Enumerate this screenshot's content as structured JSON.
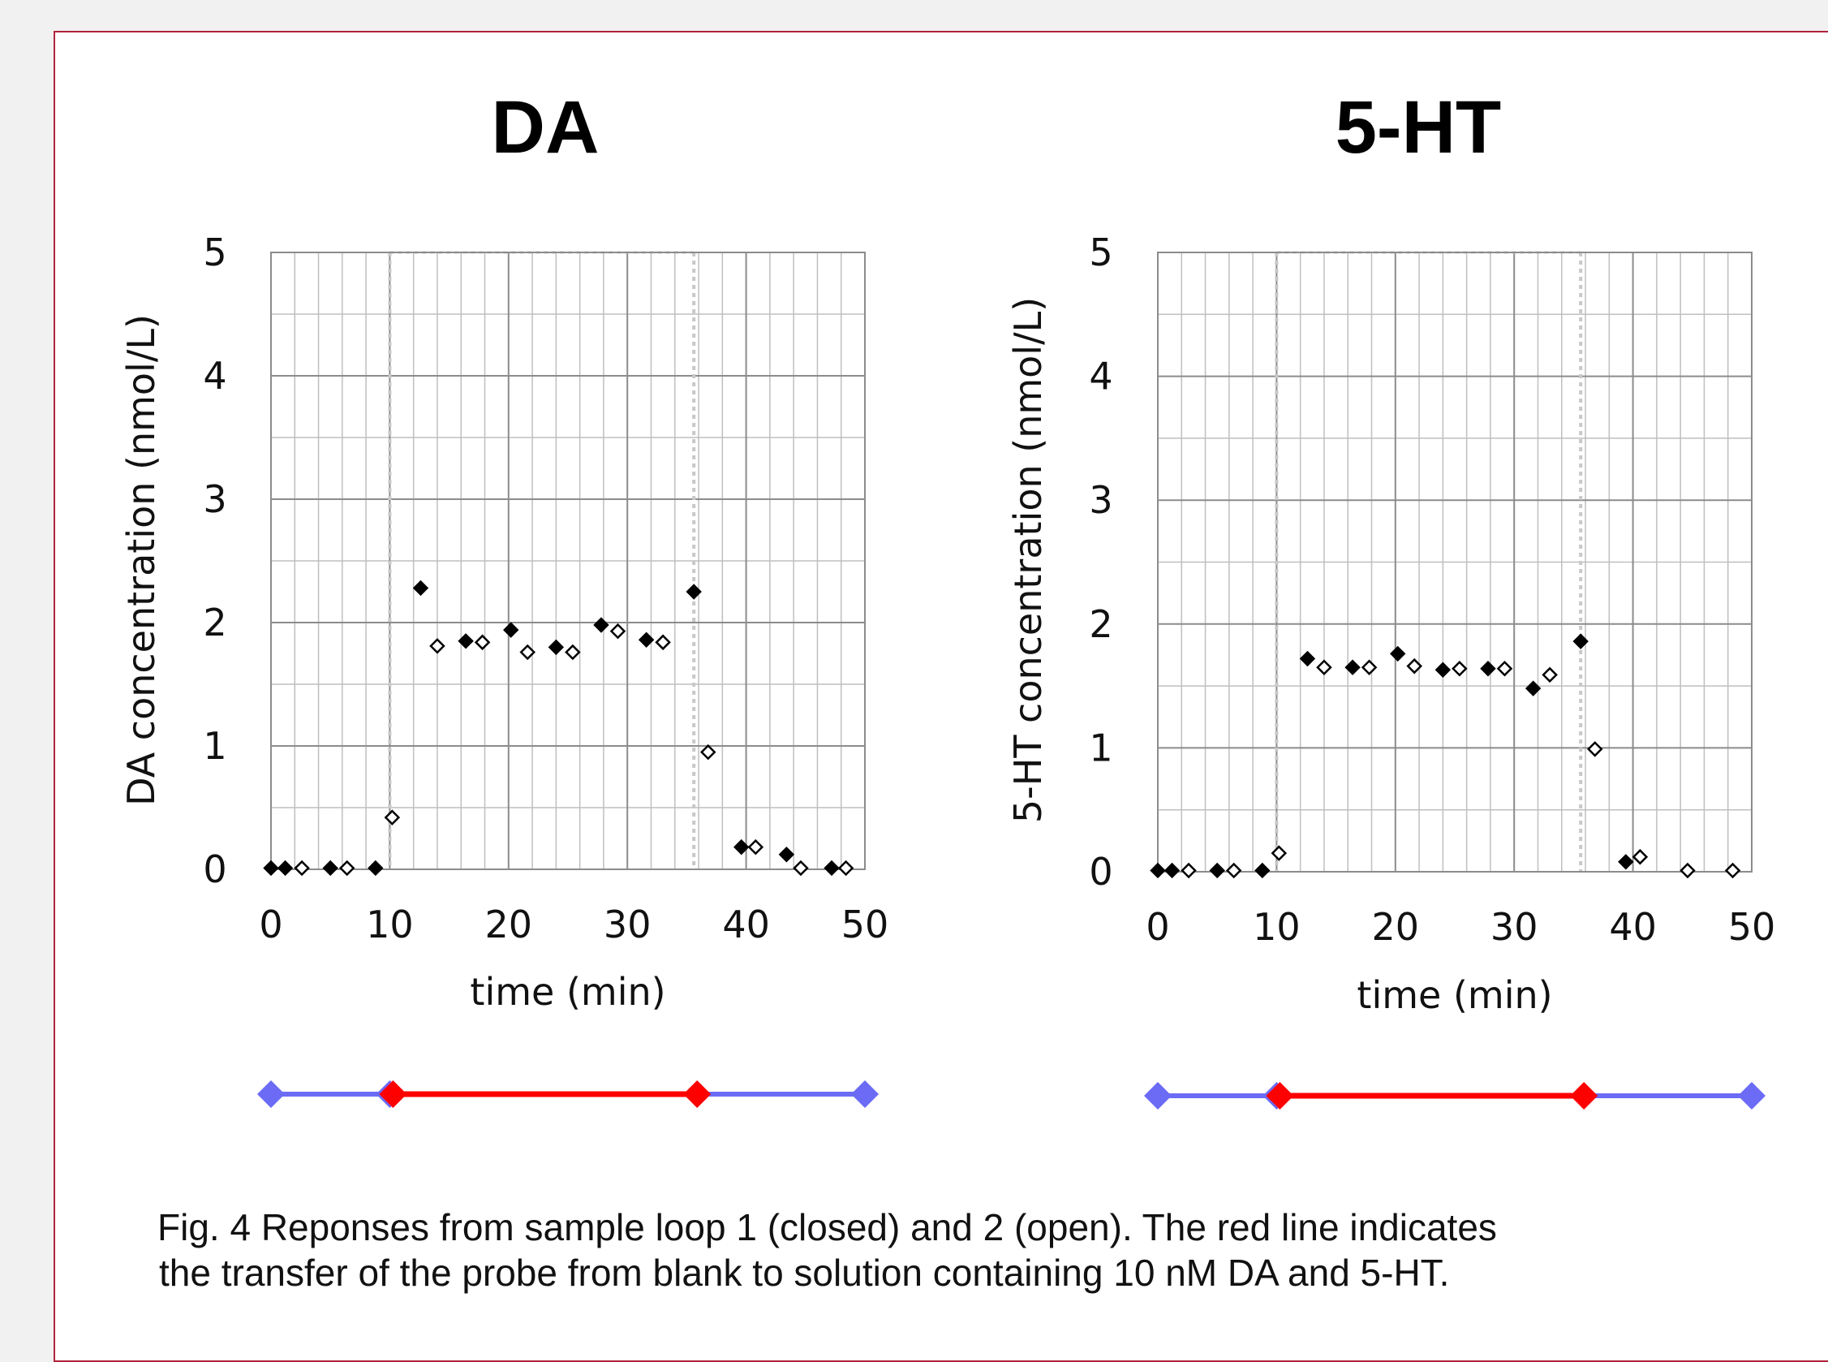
{
  "colors": {
    "border": "#b0233a",
    "background": "#f1f1f1",
    "panel": "#ffffff",
    "grid": "#bfbfbf",
    "marker": "#000000",
    "timeline_blank": "#6b6bf5",
    "timeline_solution": "#ff0000"
  },
  "chart_data": [
    {
      "type": "scatter",
      "title": "DA",
      "xlabel": "time (min)",
      "ylabel": "DA concentration (nmol/L)",
      "xlim": [
        0,
        50
      ],
      "ylim": [
        0,
        5
      ],
      "xticks": [
        "0",
        "10",
        "20",
        "30",
        "40",
        "50"
      ],
      "yticks": [
        "0",
        "1",
        "2",
        "3",
        "4",
        "5"
      ],
      "grid": true,
      "transfer_lines_x": [
        10,
        35.6
      ],
      "series": [
        {
          "marker": "filled-diamond",
          "points": [
            [
              0,
              0.01
            ],
            [
              1.2,
              0.01
            ],
            [
              5,
              0.01
            ],
            [
              8.8,
              0.01
            ],
            [
              12.6,
              2.28
            ],
            [
              16.4,
              1.85
            ],
            [
              20.2,
              1.94
            ],
            [
              24,
              1.8
            ],
            [
              27.8,
              1.98
            ],
            [
              31.6,
              1.86
            ],
            [
              35.6,
              2.25
            ],
            [
              39.6,
              0.18
            ],
            [
              43.4,
              0.12
            ],
            [
              47.2,
              0.01
            ]
          ]
        },
        {
          "marker": "open-diamond",
          "points": [
            [
              2.6,
              0.01
            ],
            [
              6.4,
              0.01
            ],
            [
              10.2,
              0.42
            ],
            [
              14,
              1.81
            ],
            [
              17.8,
              1.84
            ],
            [
              21.6,
              1.76
            ],
            [
              25.4,
              1.76
            ],
            [
              29.2,
              1.93
            ],
            [
              33,
              1.84
            ],
            [
              36.8,
              0.95
            ],
            [
              40.8,
              0.18
            ],
            [
              44.6,
              0.01
            ],
            [
              48.4,
              0.01
            ]
          ]
        }
      ],
      "timeline": {
        "blank_before": [
          0,
          10
        ],
        "solution": [
          10,
          35.6
        ],
        "blank_after": [
          35.6,
          50
        ]
      }
    },
    {
      "type": "scatter",
      "title": "5-HT",
      "xlabel": "time (min)",
      "ylabel": "5-HT concentration (nmol/L)",
      "xlim": [
        0,
        50
      ],
      "ylim": [
        0,
        5
      ],
      "xticks": [
        "0",
        "10",
        "20",
        "30",
        "40",
        "50"
      ],
      "yticks": [
        "0",
        "1",
        "2",
        "3",
        "4",
        "5"
      ],
      "grid": true,
      "transfer_lines_x": [
        10,
        35.6
      ],
      "series": [
        {
          "marker": "filled-diamond",
          "points": [
            [
              0,
              0.01
            ],
            [
              1.2,
              0.01
            ],
            [
              5,
              0.01
            ],
            [
              8.8,
              0.01
            ],
            [
              12.6,
              1.72
            ],
            [
              16.4,
              1.65
            ],
            [
              20.2,
              1.76
            ],
            [
              24,
              1.63
            ],
            [
              27.8,
              1.64
            ],
            [
              31.6,
              1.48
            ],
            [
              35.6,
              1.86
            ],
            [
              39.4,
              0.08
            ]
          ]
        },
        {
          "marker": "open-diamond",
          "points": [
            [
              2.6,
              0.01
            ],
            [
              6.4,
              0.01
            ],
            [
              10.2,
              0.15
            ],
            [
              14,
              1.65
            ],
            [
              17.8,
              1.65
            ],
            [
              21.6,
              1.66
            ],
            [
              25.4,
              1.64
            ],
            [
              29.2,
              1.64
            ],
            [
              33,
              1.59
            ],
            [
              36.8,
              0.99
            ],
            [
              40.6,
              0.12
            ],
            [
              44.6,
              0.01
            ],
            [
              48.4,
              0.01
            ]
          ]
        }
      ],
      "timeline": {
        "blank_before": [
          0,
          10
        ],
        "solution": [
          10,
          35.6
        ],
        "blank_after": [
          35.6,
          50
        ]
      }
    }
  ],
  "caption": {
    "line1": "Fig. 4 Reponses from sample loop 1 (closed) and 2 (open). The red line indicates",
    "line2": "the transfer of the probe from blank to solution containing 10 nM DA and 5-HT."
  }
}
